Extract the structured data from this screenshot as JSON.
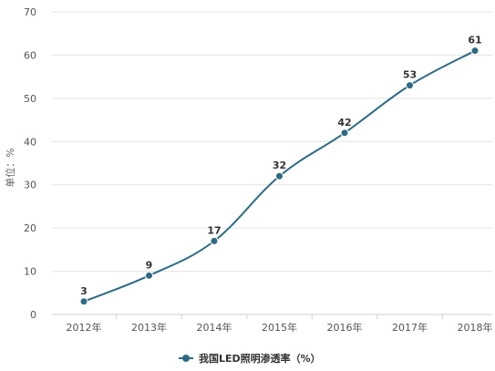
{
  "chart_data": {
    "type": "line",
    "categories": [
      "2012年",
      "2013年",
      "2014年",
      "2015年",
      "2016年",
      "2017年",
      "2018年"
    ],
    "series": [
      {
        "name": "我国LED照明渗透率（%）",
        "values": [
          3,
          9,
          17,
          32,
          42,
          53,
          61
        ],
        "color": "#2e6a84"
      }
    ],
    "ylabel": "单位：%",
    "xlabel": "",
    "ylim": [
      0,
      70
    ],
    "yticks": [
      0,
      10,
      20,
      30,
      40,
      50,
      60,
      70
    ],
    "grid": true,
    "smooth": true,
    "legend_position": "bottom",
    "data_labels": true
  },
  "colors": {
    "line": "#2e6a84",
    "grid": "#e3e3e3",
    "axis": "#cfcfcf",
    "text": "#555555"
  }
}
